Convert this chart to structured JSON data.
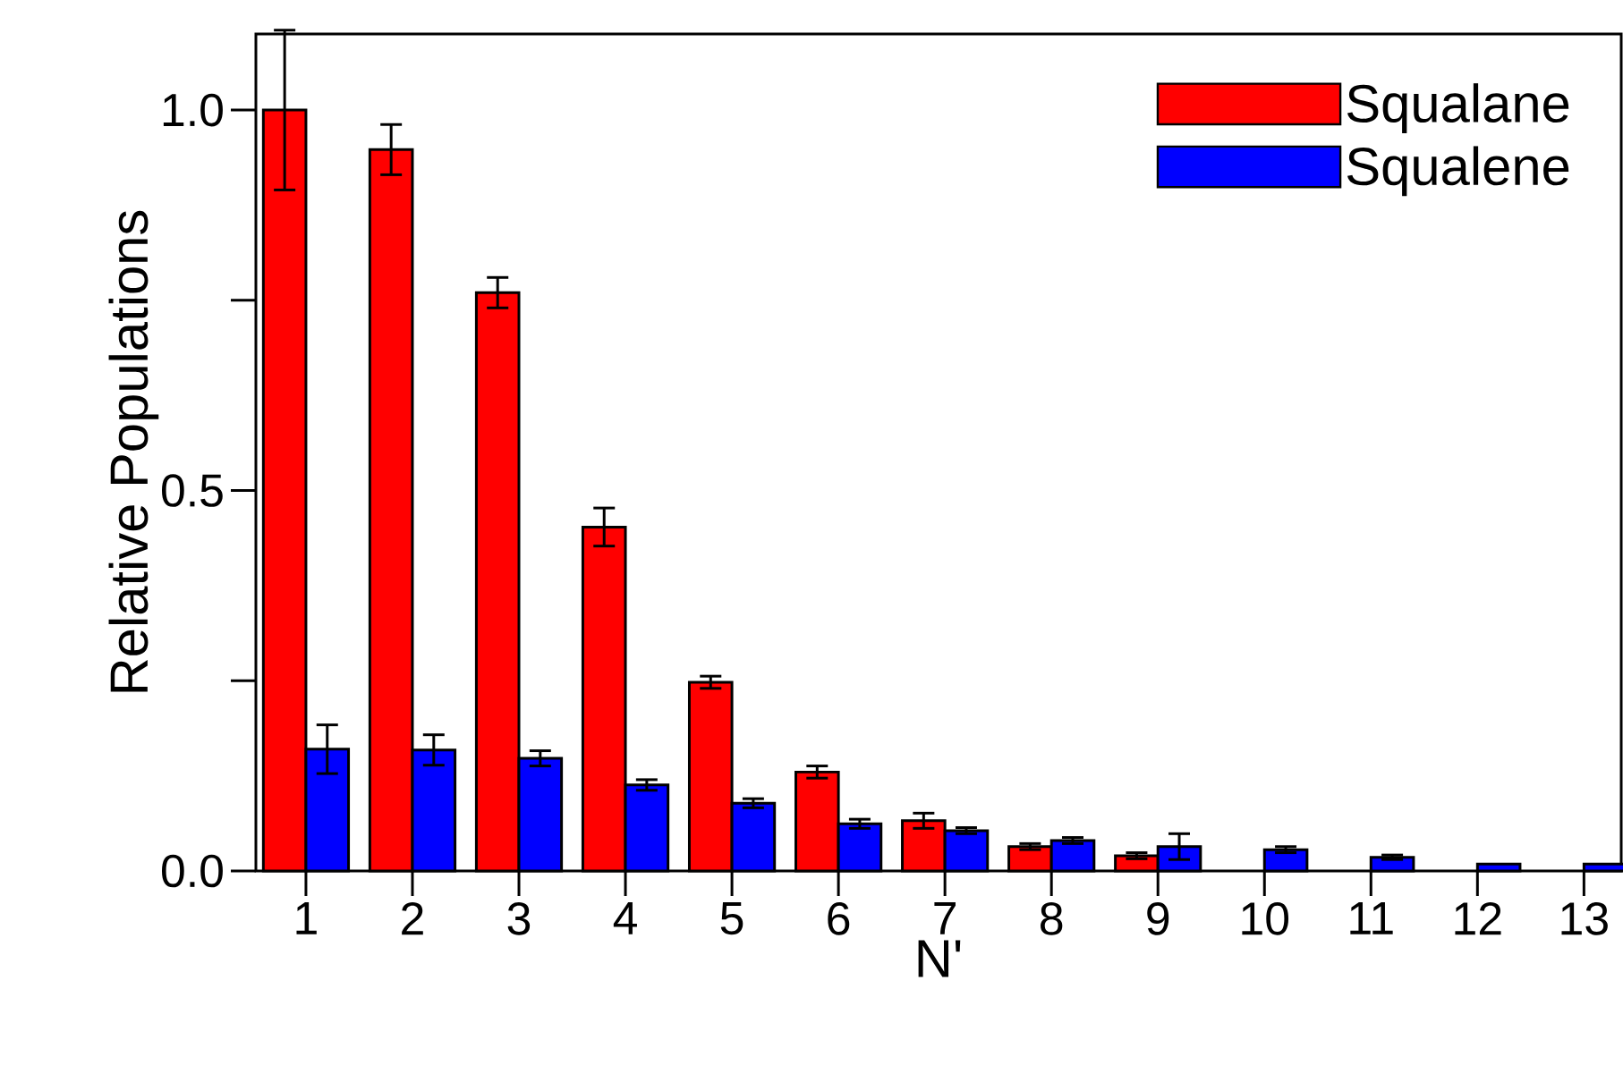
{
  "chart_data": {
    "type": "bar",
    "xlabel": "N'",
    "ylabel": "Relative Populations",
    "categories": [
      "1",
      "2",
      "3",
      "4",
      "5",
      "6",
      "7",
      "8",
      "9",
      "10",
      "11",
      "12",
      "13"
    ],
    "series": [
      {
        "name": "Squalane",
        "color": "#ff0000",
        "values": [
          1.0,
          0.948,
          0.76,
          0.452,
          0.248,
          0.13,
          0.066,
          0.032,
          0.02,
          null,
          null,
          null,
          null
        ],
        "errors": [
          0.105,
          0.033,
          0.02,
          0.025,
          0.008,
          0.008,
          0.01,
          0.004,
          0.004,
          null,
          null,
          null,
          null
        ]
      },
      {
        "name": "Squalene",
        "color": "#0000ff",
        "values": [
          0.16,
          0.159,
          0.148,
          0.113,
          0.089,
          0.062,
          0.053,
          0.04,
          0.032,
          0.028,
          0.018,
          0.009,
          0.009
        ],
        "errors": [
          0.032,
          0.02,
          0.01,
          0.007,
          0.006,
          0.006,
          0.004,
          0.004,
          0.017,
          0.004,
          0.003,
          null,
          null
        ]
      }
    ],
    "ylim": [
      0,
      1.1
    ],
    "yticks": [
      {
        "value": 0,
        "label": "0.0"
      },
      {
        "value": 0.25,
        "label": null
      },
      {
        "value": 0.5,
        "label": "0.5"
      },
      {
        "value": 0.75,
        "label": null
      },
      {
        "value": 1.0,
        "label": "1.0"
      }
    ],
    "grid": false,
    "legend": "top right"
  }
}
